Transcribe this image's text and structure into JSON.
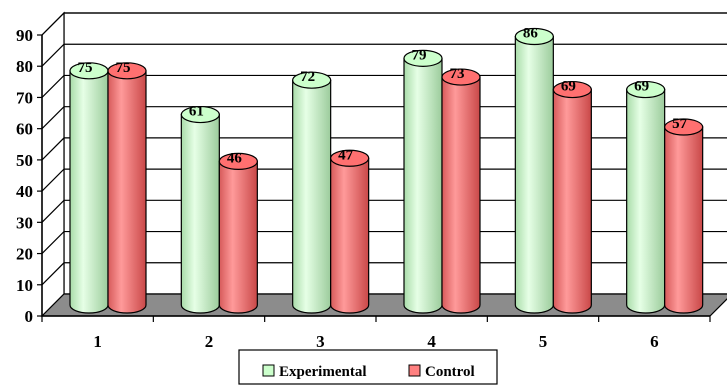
{
  "chart_data": {
    "type": "bar",
    "title": "",
    "xlabel": "",
    "ylabel": "",
    "categories": [
      "1",
      "2",
      "3",
      "4",
      "5",
      "6"
    ],
    "ylim": [
      0,
      90
    ],
    "yticks": [
      0,
      10,
      20,
      30,
      40,
      50,
      60,
      70,
      80,
      90
    ],
    "grid": true,
    "legend_position": "bottom",
    "style": "3d-cylinder",
    "series": [
      {
        "name": "Experimental",
        "values": [
          75,
          61,
          72,
          79,
          86,
          69
        ],
        "color": "#ccffcc"
      },
      {
        "name": "Control",
        "values": [
          75,
          46,
          47,
          73,
          69,
          57
        ],
        "color": "#ff8080"
      }
    ]
  },
  "legend": {
    "items": [
      "Experimental",
      "Control"
    ]
  }
}
